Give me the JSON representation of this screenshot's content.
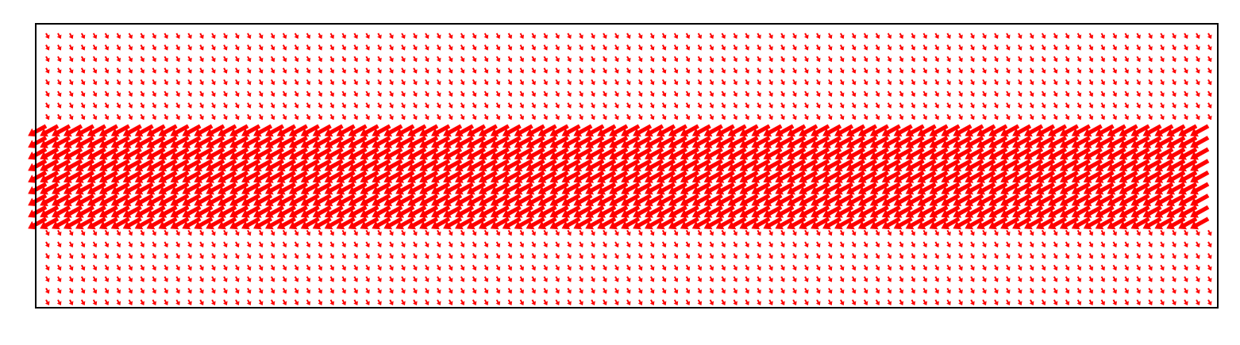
{
  "chart_data": {
    "type": "quiver",
    "title": "",
    "xlabel": "",
    "ylabel": "",
    "axes_visible": false,
    "ticks": false,
    "grid": false,
    "legend": false,
    "frame": true,
    "arrow_color": "#ff0000",
    "frame_color": "#000000",
    "background_color": "#ffffff",
    "grid_columns": 99,
    "grid_rows": 24,
    "field_bands": [
      {
        "rows": "1-8",
        "u": 0.55,
        "v": -1.0,
        "magnitude": "small"
      },
      {
        "rows": "9-17",
        "u": -1.0,
        "v": -0.55,
        "magnitude": "large"
      },
      {
        "rows": "18-24",
        "u": 0.55,
        "v": -1.0,
        "magnitude": "small"
      }
    ]
  }
}
